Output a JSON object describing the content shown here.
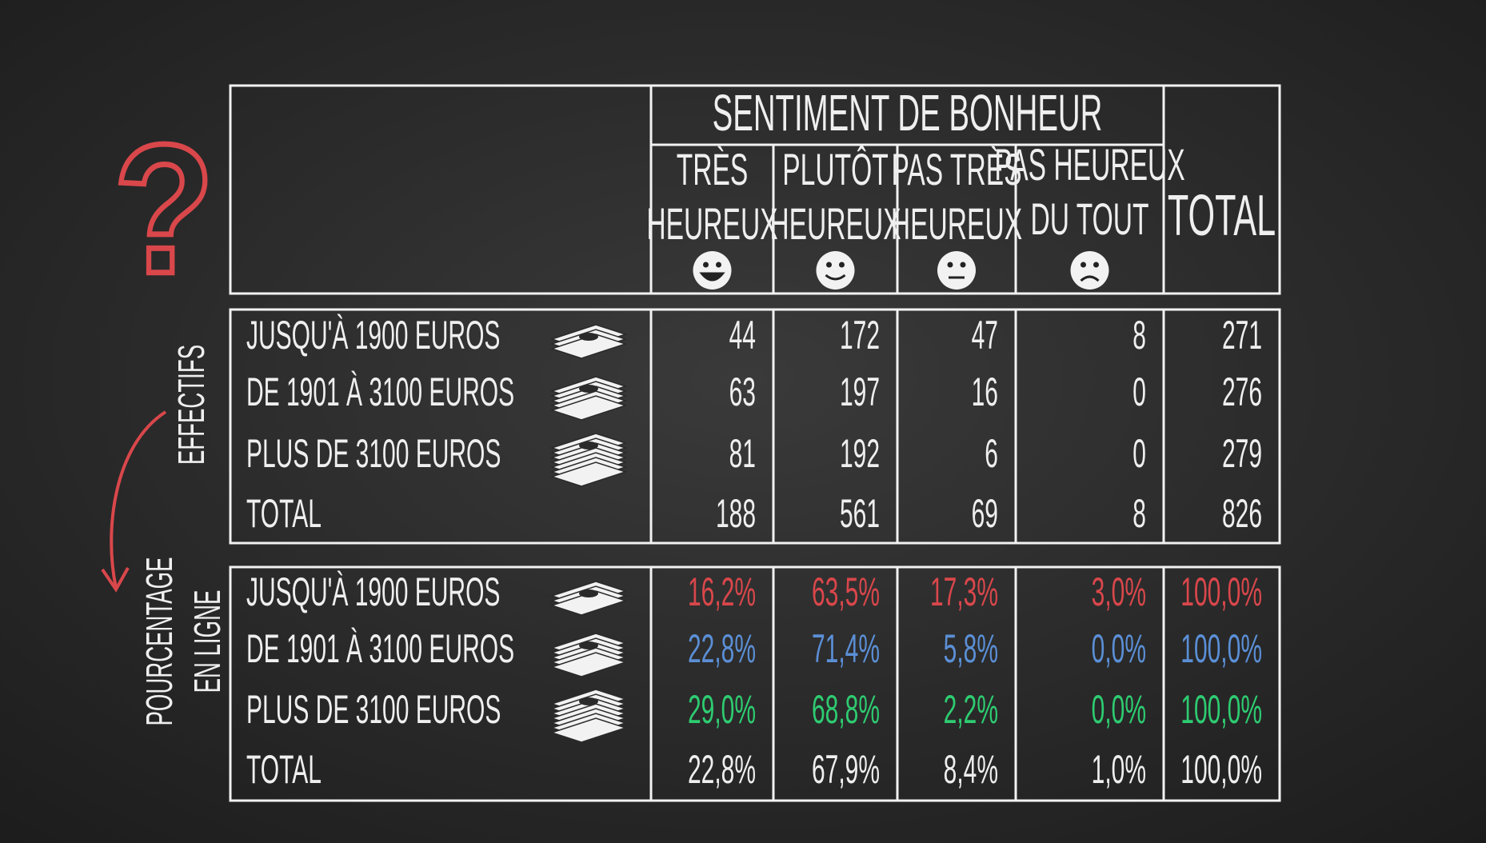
{
  "question_mark": "?",
  "header": {
    "title": "SENTIMENT DE BONHEUR",
    "columns": [
      {
        "lines": [
          "TRÈS",
          "HEUREUX"
        ]
      },
      {
        "lines": [
          "PLUTÔT",
          "HEUREUX"
        ]
      },
      {
        "lines": [
          "PAS TRÈS",
          "HEUREUX"
        ]
      },
      {
        "lines": [
          "PAS HEUREUX",
          "DU TOUT"
        ]
      },
      {
        "lines": [
          "TOTAL"
        ]
      }
    ]
  },
  "sections": [
    {
      "label": [
        "EFFECTIFS"
      ],
      "rows": [
        {
          "label": "JUSQU'À 1900 EUROS",
          "cells": [
            44,
            172,
            47,
            8,
            271
          ]
        },
        {
          "label": "DE 1901 À 3100 EUROS",
          "cells": [
            63,
            197,
            16,
            0,
            276
          ]
        },
        {
          "label": "PLUS DE 3100 EUROS",
          "cells": [
            81,
            192,
            6,
            0,
            279
          ]
        },
        {
          "label": "TOTAL",
          "cells": [
            188,
            561,
            69,
            8,
            826
          ]
        }
      ]
    },
    {
      "label": [
        "POURCENTAGE",
        "EN LIGNE"
      ],
      "rows": [
        {
          "label": "JUSQU'À 1900 EUROS",
          "color": "#d9474b",
          "cells": [
            "16,2%",
            "63,5%",
            "17,3%",
            "3,0%",
            "100,0%"
          ]
        },
        {
          "label": "DE 1901 À 3100 EUROS",
          "color": "#5b8fd6",
          "cells": [
            "22,8%",
            "71,4%",
            "5,8%",
            "0,0%",
            "100,0%"
          ]
        },
        {
          "label": "PLUS DE 3100 EUROS",
          "color": "#2ecc71",
          "cells": [
            "29,0%",
            "68,8%",
            "2,2%",
            "0,0%",
            "100,0%"
          ]
        },
        {
          "label": "TOTAL",
          "color": "#eeeeee",
          "cells": [
            "22,8%",
            "67,9%",
            "8,4%",
            "1,0%",
            "100,0%"
          ]
        }
      ]
    }
  ]
}
